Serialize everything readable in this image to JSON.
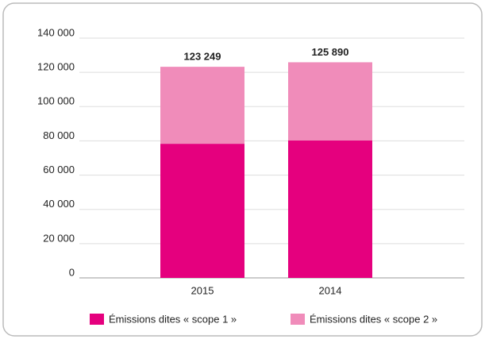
{
  "chart_data": {
    "type": "stacked_bar",
    "categories": [
      "2015",
      "2014"
    ],
    "series": [
      {
        "name": "Émissions dites « scope 1 »",
        "color": "#e5007e",
        "values": [
          78300,
          80200
        ]
      },
      {
        "name": "Émissions dites « scope 2 »",
        "color": "#f08cba",
        "values": [
          44949,
          45690
        ]
      }
    ],
    "totals": [
      123249,
      125890
    ],
    "total_labels": [
      "123 249",
      "125 890"
    ],
    "ylim": [
      0,
      140000
    ],
    "yticks": [
      0,
      {
        "value": 20000,
        "label": "20 000"
      },
      {
        "value": 40000,
        "label": "40 000"
      },
      {
        "value": 60000,
        "label": "60 000"
      },
      {
        "value": 80000,
        "label": "80 000"
      },
      {
        "value": 100000,
        "label": "100 000"
      },
      {
        "value": 120000,
        "label": "120 000"
      },
      {
        "value": 140000,
        "label": "140 000"
      }
    ],
    "grid": true
  }
}
